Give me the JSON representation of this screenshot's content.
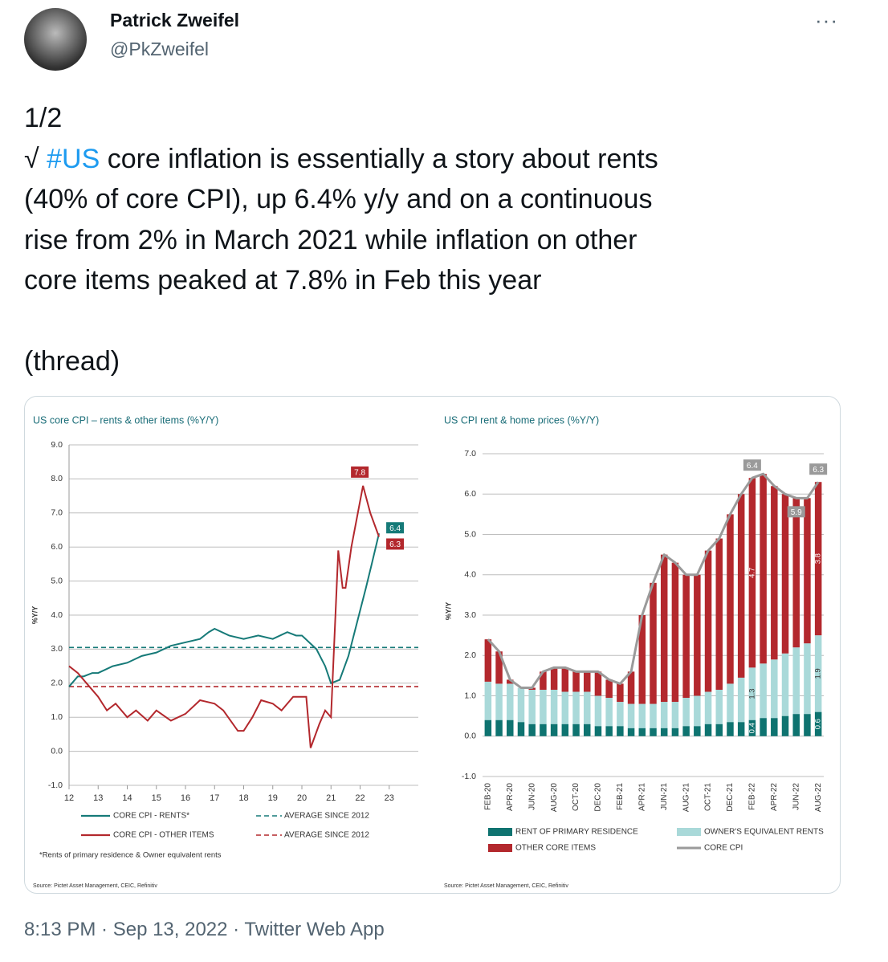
{
  "tweet": {
    "name": "Patrick Zweifel",
    "handle": "@PkZweifel",
    "more": "···",
    "lines": [
      [
        "1/2"
      ],
      [
        "√ ",
        "#US",
        " core inflation is essentially a story about rents"
      ],
      [
        "(40% of core CPI), up 6.4% y/y and on a continuous"
      ],
      [
        "rise from 2% in March 2021 while inflation on other"
      ],
      [
        "core items peaked at 7.8% in Feb this year"
      ],
      [
        "(thread)"
      ]
    ],
    "footer": "8:13 PM · Sep 13, 2022 · Twitter Web App"
  },
  "chart_data": [
    {
      "type": "line",
      "title": "US core CPI – rents & other items (%Y/Y)",
      "y_label": "%Y/Y",
      "footnote": "*Rents of primary residence & Owner equivalent rents",
      "source": "Source: Pictet Asset Management, CEIC, Refinitiv",
      "xlim": [
        12,
        24
      ],
      "xticks": [
        12,
        13,
        14,
        15,
        16,
        17,
        18,
        19,
        20,
        21,
        22,
        23
      ],
      "ylim": [
        -1,
        9
      ],
      "yticks": [
        {
          "value": -1,
          "label": "-1.0"
        },
        {
          "value": 0,
          "label": "0.0"
        },
        {
          "value": 1,
          "label": "1.0"
        },
        {
          "value": 2,
          "label": "2.0"
        },
        {
          "value": 3,
          "label": "3.0"
        },
        {
          "value": 4,
          "label": "4.0"
        },
        {
          "value": 5,
          "label": "5.0"
        },
        {
          "value": 6,
          "label": "6.0"
        },
        {
          "value": 7,
          "label": "7.0"
        },
        {
          "value": 8,
          "label": "8.0"
        },
        {
          "value": 9,
          "label": "9.0"
        }
      ],
      "grid": true,
      "series": [
        {
          "name": "CORE CPI - RENTS*",
          "color": "#167a78",
          "x": [
            12,
            12.3,
            12.5,
            12.8,
            13,
            13.5,
            14,
            14.5,
            15,
            15.5,
            16,
            16.5,
            16.8,
            17,
            17.5,
            18,
            18.5,
            19,
            19.5,
            19.8,
            20,
            20.5,
            20.8,
            21,
            21.3,
            21.6,
            21.9,
            22.2,
            22.4,
            22.65
          ],
          "values": [
            1.9,
            2.2,
            2.2,
            2.3,
            2.3,
            2.5,
            2.6,
            2.8,
            2.9,
            3.1,
            3.2,
            3.3,
            3.5,
            3.6,
            3.4,
            3.3,
            3.4,
            3.3,
            3.5,
            3.4,
            3.4,
            3.0,
            2.5,
            2.0,
            2.1,
            2.8,
            3.8,
            4.8,
            5.5,
            6.4
          ],
          "value_labels": [
            null,
            null,
            null,
            null,
            null,
            null,
            null,
            null,
            null,
            null,
            null,
            null,
            null,
            null,
            null,
            null,
            null,
            null,
            null,
            null,
            null,
            null,
            null,
            null,
            null,
            null,
            null,
            null,
            null,
            "6.4"
          ]
        },
        {
          "name": "CORE CPI - OTHER ITEMS",
          "color": "#b3282d",
          "x": [
            12,
            12.3,
            12.7,
            13,
            13.3,
            13.6,
            14,
            14.3,
            14.7,
            15,
            15.5,
            16,
            16.5,
            17,
            17.3,
            17.8,
            18,
            18.3,
            18.6,
            19,
            19.3,
            19.7,
            20,
            20.15,
            20.3,
            20.6,
            20.8,
            21,
            21.25,
            21.4,
            21.5,
            21.7,
            21.9,
            22.1,
            22.35,
            22.65
          ],
          "values": [
            2.5,
            2.3,
            1.9,
            1.6,
            1.2,
            1.4,
            1.0,
            1.2,
            0.9,
            1.2,
            0.9,
            1.1,
            1.5,
            1.4,
            1.2,
            0.6,
            0.6,
            1.0,
            1.5,
            1.4,
            1.2,
            1.6,
            1.6,
            1.6,
            0.1,
            0.8,
            1.2,
            1.0,
            5.9,
            4.8,
            4.8,
            6.0,
            6.9,
            7.8,
            7.0,
            6.3
          ],
          "value_labels": [
            null,
            null,
            null,
            null,
            null,
            null,
            null,
            null,
            null,
            null,
            null,
            null,
            null,
            null,
            null,
            null,
            null,
            null,
            null,
            null,
            null,
            null,
            null,
            null,
            null,
            null,
            null,
            null,
            null,
            null,
            null,
            null,
            null,
            "7.8",
            null,
            "6.3"
          ]
        }
      ],
      "reference_lines": [
        {
          "name": "AVERAGE SINCE 2012",
          "color": "#167a78",
          "value": 3.05
        },
        {
          "name": "AVERAGE SINCE 2012",
          "color": "#b3282d",
          "value": 1.9
        }
      ]
    },
    {
      "type": "bar",
      "stacked": true,
      "title": "US CPI rent & home prices (%Y/Y)",
      "y_label": "%Y/Y",
      "source": "Source: Pictet Asset Management, CEIC, Refinitiv",
      "categories": [
        "FEB-20",
        null,
        "APR-20",
        null,
        "JUN-20",
        null,
        "AUG-20",
        null,
        "OCT-20",
        null,
        "DEC-20",
        null,
        "FEB-21",
        null,
        "APR-21",
        null,
        "JUN-21",
        null,
        "AUG-21",
        null,
        "OCT-21",
        null,
        "DEC-21",
        null,
        "FEB-22",
        null,
        "APR-22",
        null,
        "JUN-22",
        null,
        "AUG-22"
      ],
      "ylim": [
        -1,
        7.2
      ],
      "yticks": [
        {
          "value": -1,
          "label": "-1.0"
        },
        {
          "value": 0,
          "label": "0.0"
        },
        {
          "value": 1,
          "label": "1.0"
        },
        {
          "value": 2,
          "label": "2.0"
        },
        {
          "value": 3,
          "label": "3.0"
        },
        {
          "value": 4,
          "label": "4.0"
        },
        {
          "value": 5,
          "label": "5.0"
        },
        {
          "value": 6,
          "label": "6.0"
        },
        {
          "value": 7,
          "label": "7.0"
        }
      ],
      "grid": true,
      "series": [
        {
          "name": "RENT OF PRIMARY RESIDENCE",
          "color": "#0e7370",
          "values": [
            0.4,
            0.4,
            0.4,
            0.35,
            0.3,
            0.3,
            0.3,
            0.3,
            0.3,
            0.3,
            0.25,
            0.25,
            0.25,
            0.2,
            0.2,
            0.2,
            0.2,
            0.2,
            0.25,
            0.25,
            0.3,
            0.3,
            0.35,
            0.35,
            0.4,
            0.45,
            0.45,
            0.5,
            0.55,
            0.55,
            0.6
          ],
          "value_labels": [
            null,
            null,
            null,
            null,
            null,
            null,
            null,
            null,
            null,
            null,
            null,
            null,
            null,
            null,
            null,
            null,
            null,
            null,
            null,
            null,
            null,
            null,
            null,
            null,
            "0.4",
            null,
            null,
            null,
            null,
            null,
            "0.6"
          ]
        },
        {
          "name": "OWNER'S EQUIVALENT RENTS",
          "color": "#a9d9d9",
          "values": [
            0.95,
            0.9,
            0.9,
            0.85,
            0.85,
            0.85,
            0.85,
            0.8,
            0.8,
            0.8,
            0.75,
            0.7,
            0.6,
            0.6,
            0.6,
            0.6,
            0.65,
            0.65,
            0.7,
            0.75,
            0.8,
            0.85,
            0.95,
            1.1,
            1.3,
            1.35,
            1.45,
            1.55,
            1.65,
            1.75,
            1.9
          ],
          "value_labels": [
            null,
            null,
            null,
            null,
            null,
            null,
            null,
            null,
            null,
            null,
            null,
            null,
            null,
            null,
            null,
            null,
            null,
            null,
            null,
            null,
            null,
            null,
            null,
            null,
            "1.3",
            null,
            null,
            null,
            null,
            null,
            "1.9"
          ]
        },
        {
          "name": "OTHER CORE ITEMS",
          "color": "#b3282d",
          "values": [
            1.05,
            0.8,
            0.1,
            0,
            0.05,
            0.45,
            0.55,
            0.6,
            0.5,
            0.5,
            0.6,
            0.45,
            0.45,
            0.8,
            2.2,
            3.0,
            3.65,
            3.45,
            3.05,
            3.0,
            3.5,
            3.75,
            4.2,
            4.55,
            4.7,
            4.7,
            4.3,
            3.95,
            3.7,
            3.6,
            3.8
          ],
          "value_labels": [
            null,
            null,
            null,
            null,
            null,
            null,
            null,
            null,
            null,
            null,
            null,
            null,
            null,
            null,
            null,
            null,
            null,
            null,
            null,
            null,
            null,
            null,
            null,
            null,
            "4.7",
            null,
            null,
            null,
            null,
            null,
            "3.8"
          ]
        },
        {
          "name": "CORE CPI",
          "color": "#9a9a9a",
          "type": "line",
          "values": [
            2.4,
            2.1,
            1.4,
            1.2,
            1.2,
            1.6,
            1.7,
            1.7,
            1.6,
            1.6,
            1.6,
            1.4,
            1.3,
            1.6,
            3.0,
            3.8,
            4.5,
            4.3,
            4.0,
            4.0,
            4.6,
            4.9,
            5.5,
            6.0,
            6.4,
            6.5,
            6.2,
            6.0,
            5.9,
            5.9,
            6.3
          ],
          "value_labels": [
            null,
            null,
            null,
            null,
            null,
            null,
            null,
            null,
            null,
            null,
            null,
            null,
            null,
            null,
            null,
            null,
            null,
            null,
            null,
            null,
            null,
            null,
            null,
            null,
            "6.4",
            null,
            null,
            null,
            "5.9",
            null,
            "6.3"
          ]
        }
      ]
    }
  ]
}
